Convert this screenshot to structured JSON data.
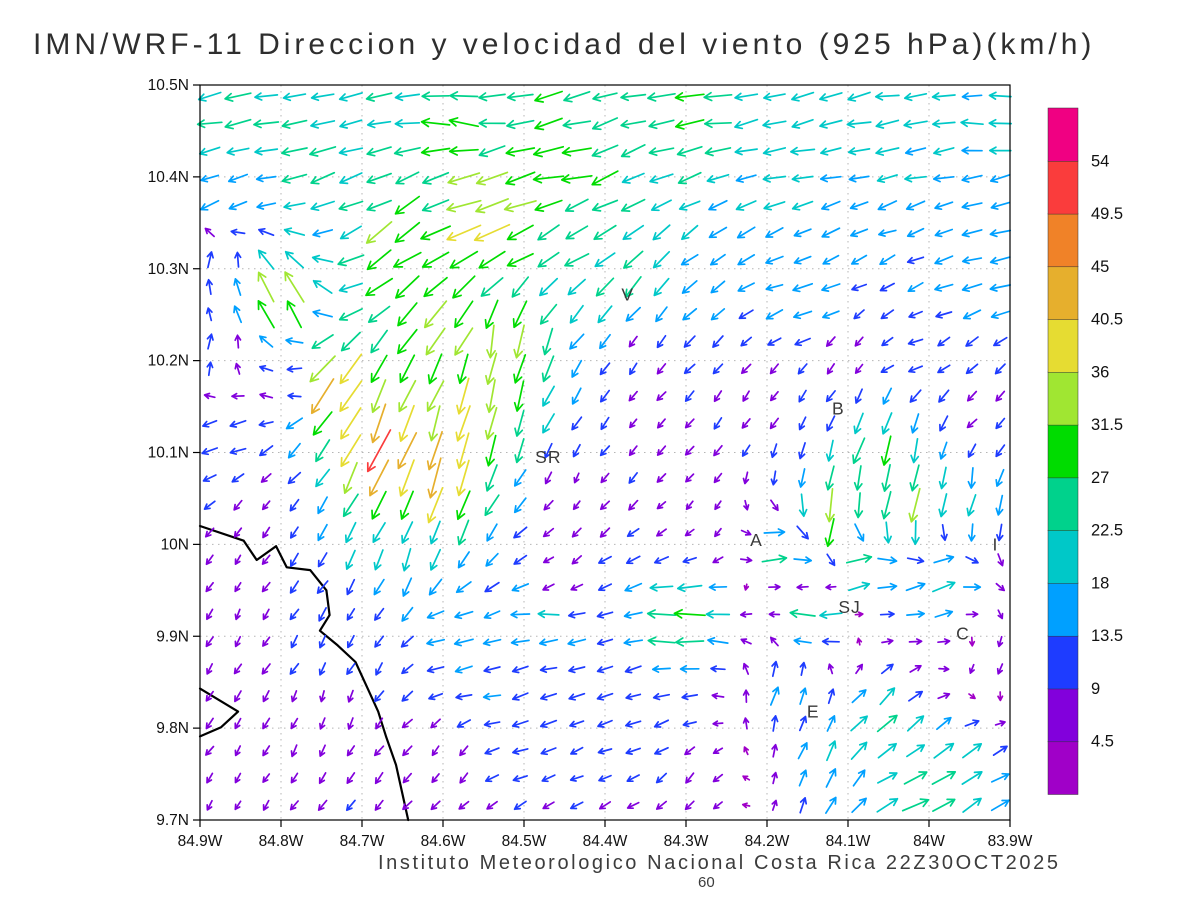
{
  "chart_data": {
    "type": "quiver",
    "title": "IMN/WRF-11 Direccion y velocidad del viento (925 hPa)(km/h)",
    "footer_caption": "Instituto Meteorologico Nacional Costa Rica 22Z30OCT2025",
    "forecast_hour_label": "60",
    "units": "km/h",
    "pressure_level": "925 hPa",
    "lon_w_range": [
      84.9,
      83.9
    ],
    "lat_range": [
      9.7,
      10.5
    ],
    "grid": "dotted",
    "x_axis": {
      "tick_lons_w": [
        84.9,
        84.8,
        84.7,
        84.6,
        84.5,
        84.4,
        84.3,
        84.2,
        84.1,
        84.0,
        83.9
      ],
      "tick_labels": [
        "84.9W",
        "84.8W",
        "84.7W",
        "84.6W",
        "84.5W",
        "84.4W",
        "84.3W",
        "84.2W",
        "84.1W",
        "84W",
        "83.9W"
      ]
    },
    "y_axis": {
      "tick_lats": [
        10.5,
        10.4,
        10.3,
        10.2,
        10.1,
        10.0,
        9.9,
        9.8,
        9.7
      ],
      "tick_labels": [
        "10.5N",
        "10.4N",
        "10.3N",
        "10.2N",
        "10.1N",
        "10N",
        "9.9N",
        "9.8N",
        "9.7N"
      ]
    },
    "colorbar": {
      "position": "right",
      "levels": [
        4.5,
        9,
        13.5,
        18,
        22.5,
        27,
        31.5,
        36,
        40.5,
        45,
        49.5,
        54
      ],
      "level_labels": [
        "4.5",
        "9",
        "13.5",
        "18",
        "22.5",
        "27",
        "31.5",
        "36",
        "40.5",
        "45",
        "49.5",
        "54"
      ],
      "colors": [
        "#a000c8",
        "#8200dc",
        "#1e3cff",
        "#00a0ff",
        "#00c8c8",
        "#00d28c",
        "#00dc00",
        "#a0e632",
        "#e6dc32",
        "#e6af2d",
        "#f08228",
        "#fa3c3c",
        "#f00082"
      ]
    },
    "city_labels": [
      {
        "label": "V",
        "lon_w": 84.372,
        "lat": 10.272
      },
      {
        "label": "B",
        "lon_w": 84.112,
        "lat": 10.148
      },
      {
        "label": "SR",
        "lon_w": 84.47,
        "lat": 10.095
      },
      {
        "label": "A",
        "lon_w": 84.213,
        "lat": 10.005
      },
      {
        "label": "SJ",
        "lon_w": 84.098,
        "lat": 9.932
      },
      {
        "label": "C",
        "lon_w": 83.958,
        "lat": 9.903
      },
      {
        "label": "E",
        "lon_w": 84.143,
        "lat": 9.818
      },
      {
        "label": "I",
        "lon_w": 83.918,
        "lat": 10.0
      }
    ],
    "coastline_lonlat": [
      [
        [
          84.9,
          10.02
        ],
        [
          84.846,
          10.004
        ],
        [
          84.83,
          9.983
        ],
        [
          84.806,
          9.998
        ],
        [
          84.793,
          9.975
        ],
        [
          84.764,
          9.972
        ],
        [
          84.744,
          9.95
        ],
        [
          84.74,
          9.923
        ],
        [
          84.752,
          9.906
        ],
        [
          84.73,
          9.89
        ],
        [
          84.708,
          9.872
        ],
        [
          84.694,
          9.845
        ],
        [
          84.68,
          9.818
        ],
        [
          84.67,
          9.79
        ],
        [
          84.658,
          9.76
        ],
        [
          84.651,
          9.732
        ],
        [
          84.643,
          9.7
        ]
      ],
      [
        [
          84.9,
          9.843
        ],
        [
          84.853,
          9.818
        ],
        [
          84.874,
          9.801
        ],
        [
          84.9,
          9.791
        ]
      ]
    ],
    "arrow_grid": {
      "cols": 29,
      "rows": 27
    },
    "wind_samples_lon_lat_u_v": [
      [
        84.86,
        10.47,
        -24,
        -4
      ],
      [
        84.58,
        10.48,
        -27,
        3
      ],
      [
        84.3,
        10.47,
        -26,
        -3
      ],
      [
        84.05,
        10.47,
        -22,
        -4
      ],
      [
        83.92,
        10.45,
        -19,
        3
      ],
      [
        84.75,
        10.41,
        -23,
        -7
      ],
      [
        84.45,
        10.41,
        -31,
        -7
      ],
      [
        84.15,
        10.42,
        -20,
        -4
      ],
      [
        83.93,
        10.4,
        -17,
        -5
      ],
      [
        84.87,
        10.37,
        -16,
        -7
      ],
      [
        84.55,
        10.35,
        -36,
        -12
      ],
      [
        84.66,
        10.31,
        -27,
        -19
      ],
      [
        84.8,
        10.27,
        -18,
        34
      ],
      [
        84.88,
        10.31,
        2,
        14
      ],
      [
        84.88,
        10.21,
        4,
        11
      ],
      [
        84.44,
        10.33,
        -20,
        -12
      ],
      [
        84.37,
        10.29,
        -16,
        -18
      ],
      [
        84.15,
        10.26,
        -17,
        -4
      ],
      [
        83.94,
        10.29,
        -17,
        -4
      ],
      [
        84.02,
        10.21,
        -10,
        -4
      ],
      [
        84.74,
        10.17,
        -26,
        -37
      ],
      [
        84.68,
        10.11,
        -17,
        -44
      ],
      [
        84.61,
        10.07,
        -12,
        -41
      ],
      [
        84.56,
        10.15,
        -9,
        -37
      ],
      [
        84.52,
        10.21,
        -6,
        -33
      ],
      [
        84.6,
        10.24,
        -20,
        -26
      ],
      [
        84.64,
        9.99,
        -8,
        -20
      ],
      [
        84.86,
        10.12,
        -13,
        -4
      ],
      [
        84.8,
        10.17,
        -8,
        4
      ],
      [
        84.44,
        10.06,
        -3,
        -5
      ],
      [
        84.35,
        10.14,
        -4,
        -5
      ],
      [
        84.3,
        10.03,
        -4,
        -4
      ],
      [
        84.46,
        9.97,
        -5,
        -4
      ],
      [
        84.2,
        10.17,
        -4,
        -6
      ],
      [
        84.1,
        10.21,
        -4,
        -5
      ],
      [
        84.36,
        10.21,
        -5,
        -7
      ],
      [
        83.93,
        10.13,
        -6,
        -6
      ],
      [
        84.06,
        10.1,
        -9,
        -26
      ],
      [
        84.03,
        10.04,
        -5,
        -33
      ],
      [
        84.12,
        10.03,
        -6,
        -33
      ],
      [
        83.95,
        10.05,
        -4,
        -20
      ],
      [
        84.18,
        9.99,
        23,
        3
      ],
      [
        84.08,
        9.975,
        25,
        6
      ],
      [
        83.99,
        9.96,
        22,
        8
      ],
      [
        84.48,
        9.925,
        -19,
        -1
      ],
      [
        84.3,
        9.92,
        -32,
        1
      ],
      [
        84.14,
        9.925,
        -25,
        0
      ],
      [
        84.58,
        9.9,
        -15,
        -3
      ],
      [
        84.06,
        9.8,
        17,
        17
      ],
      [
        83.97,
        9.745,
        19,
        13
      ],
      [
        84.01,
        9.715,
        26,
        9
      ],
      [
        84.12,
        9.76,
        6,
        17
      ],
      [
        83.92,
        9.87,
        -3,
        -6
      ],
      [
        84.18,
        9.84,
        5,
        15
      ],
      [
        84.85,
        9.91,
        -3,
        -6
      ],
      [
        84.74,
        9.815,
        -2,
        -7
      ],
      [
        84.6,
        9.76,
        -4,
        -6
      ],
      [
        84.85,
        9.725,
        -3,
        -5
      ],
      [
        84.7,
        9.9,
        -4,
        -8
      ],
      [
        84.82,
        10.04,
        -4,
        -6
      ],
      [
        84.86,
        9.975,
        -3,
        -5
      ],
      [
        84.5,
        9.8,
        -13,
        -3
      ],
      [
        84.35,
        9.8,
        -12,
        -4
      ],
      [
        84.3,
        9.74,
        -6,
        -6
      ],
      [
        84.45,
        9.72,
        -8,
        -4
      ],
      [
        84.55,
        9.87,
        -14,
        -2
      ]
    ]
  },
  "colors": {
    "background": "#ffffff",
    "grid": "#b5b5b5",
    "coastline": "#000000",
    "axis_text": "#111111",
    "annotation_text": "#3a3a3a"
  }
}
